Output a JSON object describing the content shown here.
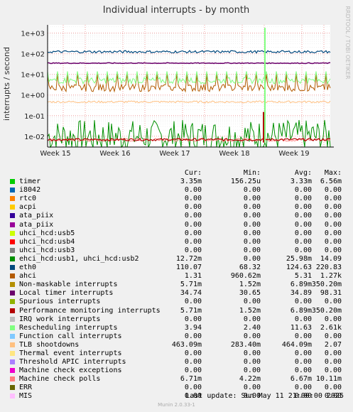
{
  "chart_data": {
    "type": "line",
    "title": "Individual interrupts - by month",
    "ylabel": "interrupts / second",
    "xlabel": "",
    "y_scale": "log",
    "ylim": [
      0.003,
      2500
    ],
    "y_ticks": [
      "1e-02",
      "1e-01",
      "1e+00",
      "1e+01",
      "1e+02",
      "1e+03"
    ],
    "x_ticks": [
      "Week 15",
      "Week 16",
      "Week 17",
      "Week 18",
      "Week 19"
    ],
    "side_label": "RRDTOOL / TOBI OETIKER",
    "grid": true,
    "legend_headers": [
      "Cur:",
      "Min:",
      "Avg:",
      "Max:"
    ],
    "series": [
      {
        "name": "timer",
        "color": "#00cc00",
        "cur": "3.35m",
        "min": "156.25u",
        "avg": "3.33m",
        "max": "6.56m"
      },
      {
        "name": "i8042",
        "color": "#0066b3",
        "cur": "0.00",
        "min": "0.00",
        "avg": "0.00",
        "max": "0.00"
      },
      {
        "name": "rtc0",
        "color": "#ff8000",
        "cur": "0.00",
        "min": "0.00",
        "avg": "0.00",
        "max": "0.00"
      },
      {
        "name": "acpi",
        "color": "#ffcc00",
        "cur": "0.00",
        "min": "0.00",
        "avg": "0.00",
        "max": "0.00"
      },
      {
        "name": "ata_piix",
        "color": "#330099",
        "cur": "0.00",
        "min": "0.00",
        "avg": "0.00",
        "max": "0.00"
      },
      {
        "name": "ata_piix",
        "color": "#990099",
        "cur": "0.00",
        "min": "0.00",
        "avg": "0.00",
        "max": "0.00"
      },
      {
        "name": "uhci_hcd:usb5",
        "color": "#ccff00",
        "cur": "0.00",
        "min": "0.00",
        "avg": "0.00",
        "max": "0.00"
      },
      {
        "name": "uhci_hcd:usb4",
        "color": "#ff0000",
        "cur": "0.00",
        "min": "0.00",
        "avg": "0.00",
        "max": "0.00"
      },
      {
        "name": "uhci_hcd:usb3",
        "color": "#808080",
        "cur": "0.00",
        "min": "0.00",
        "avg": "0.00",
        "max": "0.00"
      },
      {
        "name": "ehci_hcd:usb1, uhci_hcd:usb2",
        "color": "#008f00",
        "cur": "12.72m",
        "min": "0.00",
        "avg": "25.98m",
        "max": "14.09"
      },
      {
        "name": "eth0",
        "color": "#00487d",
        "cur": "110.07",
        "min": "68.32",
        "avg": "124.63",
        "max": "220.83"
      },
      {
        "name": "ahci",
        "color": "#b35a00",
        "cur": "1.31",
        "min": "960.62m",
        "avg": "5.31",
        "max": "1.27k"
      },
      {
        "name": "Non-maskable interrupts",
        "color": "#b38f00",
        "cur": "5.71m",
        "min": "1.52m",
        "avg": "6.89m",
        "max": "350.20m"
      },
      {
        "name": "Local timer interrupts",
        "color": "#6b006b",
        "cur": "34.74",
        "min": "30.65",
        "avg": "34.89",
        "max": "98.31"
      },
      {
        "name": "Spurious interrupts",
        "color": "#8fb300",
        "cur": "0.00",
        "min": "0.00",
        "avg": "0.00",
        "max": "0.00"
      },
      {
        "name": "Performance monitoring interrupts",
        "color": "#b30000",
        "cur": "5.71m",
        "min": "1.52m",
        "avg": "6.89m",
        "max": "350.20m"
      },
      {
        "name": "IRQ work interrupts",
        "color": "#bebebe",
        "cur": "0.00",
        "min": "0.00",
        "avg": "0.00",
        "max": "0.00"
      },
      {
        "name": "Rescheduling interrupts",
        "color": "#80ff80",
        "cur": "3.94",
        "min": "2.40",
        "avg": "11.63",
        "max": "2.61k"
      },
      {
        "name": "Function call interrupts",
        "color": "#80c9ff",
        "cur": "0.00",
        "min": "0.00",
        "avg": "0.00",
        "max": "0.00"
      },
      {
        "name": "TLB shootdowns",
        "color": "#ffc080",
        "cur": "463.09m",
        "min": "283.40m",
        "avg": "464.09m",
        "max": "2.07"
      },
      {
        "name": "Thermal event interrupts",
        "color": "#ffe680",
        "cur": "0.00",
        "min": "0.00",
        "avg": "0.00",
        "max": "0.00"
      },
      {
        "name": "Threshold APIC interrupts",
        "color": "#aa80ff",
        "cur": "0.00",
        "min": "0.00",
        "avg": "0.00",
        "max": "0.00"
      },
      {
        "name": "Machine check exceptions",
        "color": "#ee00cc",
        "cur": "0.00",
        "min": "0.00",
        "avg": "0.00",
        "max": "0.00"
      },
      {
        "name": "Machine check polls",
        "color": "#ff8080",
        "cur": "6.71m",
        "min": "4.22m",
        "avg": "6.67m",
        "max": "10.11m"
      },
      {
        "name": "ERR",
        "color": "#666600",
        "cur": "0.00",
        "min": "0.00",
        "avg": "0.00",
        "max": "0.00"
      },
      {
        "name": "MIS",
        "color": "#ffbfff",
        "cur": "0.00",
        "min": "0.00",
        "avg": "0.00",
        "max": "0.00"
      }
    ]
  },
  "footer": {
    "last_update": "Last update:  Sun May 11 21:00:00 2025",
    "generator": "Munin 2.0.33-1"
  }
}
